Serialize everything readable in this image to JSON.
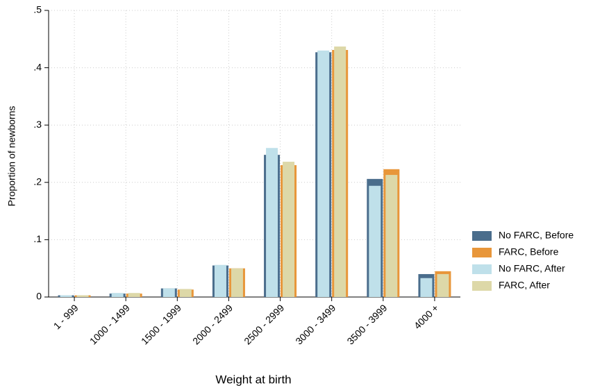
{
  "chart_data": {
    "type": "bar",
    "x_label": "Weight at birth",
    "y_label": "Proportion of newborns",
    "categories": [
      "1 - 999",
      "1000 - 1499",
      "1500 - 1999",
      "2000 - 2499",
      "2500 - 2999",
      "3000 - 3499",
      "3500 - 3999",
      "4000 +"
    ],
    "series": [
      {
        "name": "No FARC, Before",
        "color": "#4a6d8c",
        "values": [
          0.003,
          0.006,
          0.015,
          0.055,
          0.248,
          0.427,
          0.206,
          0.04
        ]
      },
      {
        "name": "FARC, Before",
        "color": "#e8963a",
        "values": [
          0.003,
          0.006,
          0.013,
          0.05,
          0.23,
          0.431,
          0.223,
          0.045
        ]
      },
      {
        "name": "No FARC, After",
        "color": "#bfe0ea",
        "values": [
          0.003,
          0.007,
          0.015,
          0.056,
          0.26,
          0.43,
          0.194,
          0.033
        ]
      },
      {
        "name": "FARC, After",
        "color": "#ddd8a8",
        "values": [
          0.003,
          0.007,
          0.014,
          0.05,
          0.236,
          0.437,
          0.213,
          0.04
        ]
      }
    ],
    "ylim": [
      0,
      0.5
    ],
    "yticks": [
      0,
      {
        "value": 0.1,
        "label": ".1"
      },
      {
        "value": 0.2,
        "label": ".2"
      },
      {
        "value": 0.3,
        "label": ".3"
      },
      {
        "value": 0.4,
        "label": ".4"
      },
      {
        "value": 0.5,
        "label": ".5"
      }
    ],
    "grid": true,
    "legend": "right"
  }
}
